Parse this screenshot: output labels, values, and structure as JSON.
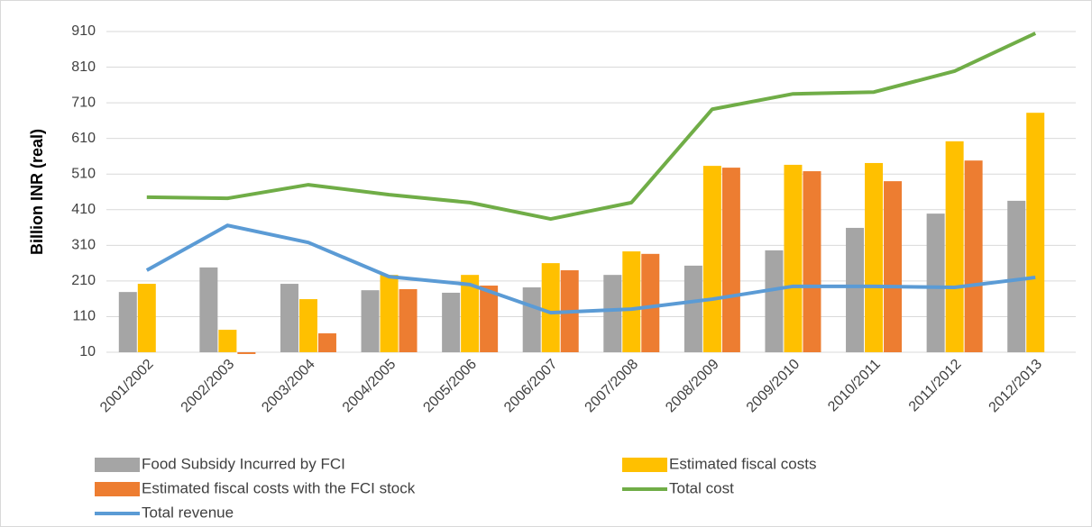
{
  "chart_data": {
    "type": "bar",
    "y_label": "Billion INR (real)",
    "categories": [
      "2001/2002",
      "2002/2003",
      "2003/2004",
      "2004/2005",
      "2005/2006",
      "2006/2007",
      "2007/2008",
      "2008/2009",
      "2009/2010",
      "2010/2011",
      "2011/2012",
      "2012/2013"
    ],
    "ylim": [
      10,
      910
    ],
    "yticks": [
      10,
      110,
      210,
      310,
      410,
      510,
      610,
      710,
      810,
      910
    ],
    "grid": true,
    "series": [
      {
        "name": "Food Subsidy Incurred by FCI",
        "type": "bar",
        "color": "#a5a5a5",
        "values": [
          179,
          248,
          202,
          184,
          177,
          192,
          227,
          253,
          296,
          359,
          399,
          435
        ]
      },
      {
        "name": "Estimated fiscal costs",
        "type": "bar",
        "color": "#ffc000",
        "values": [
          202,
          73,
          159,
          227,
          227,
          260,
          293,
          533,
          536,
          541,
          602,
          682
        ]
      },
      {
        "name": "Estimated fiscal costs with the FCI stock",
        "type": "bar",
        "color": "#ed7d31",
        "values": [
          null,
          5,
          63,
          187,
          197,
          240,
          286,
          528,
          518,
          490,
          548,
          null
        ]
      },
      {
        "name": "Total cost",
        "type": "line",
        "color": "#70ad47",
        "values": [
          445,
          442,
          480,
          452,
          430,
          384,
          430,
          692,
          735,
          740,
          799,
          905
        ]
      },
      {
        "name": "Total revenue",
        "type": "line",
        "color": "#5b9bd5",
        "values": [
          240,
          366,
          318,
          222,
          200,
          121,
          131,
          159,
          195,
          195,
          192,
          220
        ]
      }
    ]
  }
}
